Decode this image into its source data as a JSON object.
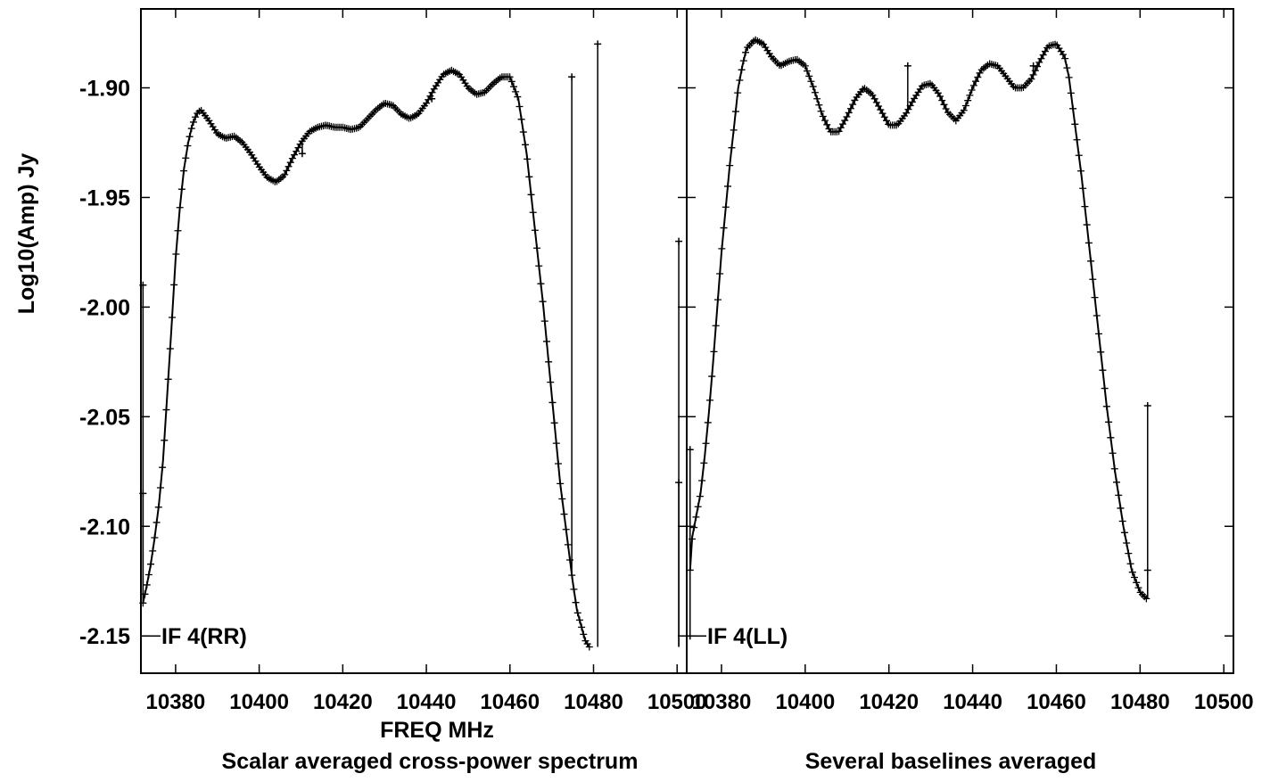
{
  "chart_data": {
    "type": "scatter",
    "ylabel": "Log10(Amp) Jy",
    "xlabel": "FREQ MHz",
    "captions": [
      "Scalar averaged cross-power spectrum",
      "Several baselines averaged"
    ],
    "y_ticks": [
      "-1.90",
      "-1.95",
      "-2.00",
      "-2.05",
      "-2.10",
      "-2.15"
    ],
    "x_ticks": [
      "10380",
      "10400",
      "10420",
      "10440",
      "10460",
      "10480",
      "10500"
    ],
    "colors": {
      "data": "#000000",
      "axes": "#000000",
      "background": "#ffffff"
    },
    "marker": "plus",
    "connected": true,
    "panels": [
      {
        "label": "IF 4(RR)",
        "xlim": [
          10371.7,
          10502.3
        ],
        "ylim": [
          -2.167,
          -1.864
        ],
        "curve": [
          [
            10372.2,
            -2.135
          ],
          [
            10373,
            -2.128
          ],
          [
            10374,
            -2.118
          ],
          [
            10375,
            -2.105
          ],
          [
            10376,
            -2.09
          ],
          [
            10377,
            -2.07
          ],
          [
            10378,
            -2.04
          ],
          [
            10379,
            -2.01
          ],
          [
            10380,
            -1.978
          ],
          [
            10381,
            -1.955
          ],
          [
            10382,
            -1.937
          ],
          [
            10383,
            -1.925
          ],
          [
            10384,
            -1.917
          ],
          [
            10385,
            -1.912
          ],
          [
            10386,
            -1.91
          ],
          [
            10388,
            -1.915
          ],
          [
            10390,
            -1.921
          ],
          [
            10392,
            -1.923
          ],
          [
            10394,
            -1.922
          ],
          [
            10396,
            -1.925
          ],
          [
            10398,
            -1.93
          ],
          [
            10400,
            -1.936
          ],
          [
            10402,
            -1.941
          ],
          [
            10404,
            -1.943
          ],
          [
            10406,
            -1.94
          ],
          [
            10408,
            -1.932
          ],
          [
            10410,
            -1.925
          ],
          [
            10412,
            -1.92
          ],
          [
            10414,
            -1.918
          ],
          [
            10416,
            -1.917
          ],
          [
            10418,
            -1.918
          ],
          [
            10420,
            -1.918
          ],
          [
            10422,
            -1.919
          ],
          [
            10424,
            -1.918
          ],
          [
            10426,
            -1.914
          ],
          [
            10428,
            -1.91
          ],
          [
            10430,
            -1.907
          ],
          [
            10432,
            -1.908
          ],
          [
            10434,
            -1.912
          ],
          [
            10436,
            -1.914
          ],
          [
            10438,
            -1.912
          ],
          [
            10440,
            -1.907
          ],
          [
            10442,
            -1.9
          ],
          [
            10444,
            -1.894
          ],
          [
            10446,
            -1.892
          ],
          [
            10448,
            -1.894
          ],
          [
            10450,
            -1.9
          ],
          [
            10452,
            -1.903
          ],
          [
            10454,
            -1.902
          ],
          [
            10456,
            -1.898
          ],
          [
            10458,
            -1.895
          ],
          [
            10460,
            -1.895
          ],
          [
            10462,
            -1.905
          ],
          [
            10464,
            -1.93
          ],
          [
            10466,
            -1.965
          ],
          [
            10468,
            -2.0
          ],
          [
            10470,
            -2.04
          ],
          [
            10472,
            -2.08
          ],
          [
            10474,
            -2.11
          ],
          [
            10475,
            -2.125
          ],
          [
            10476,
            -2.138
          ],
          [
            10477,
            -2.145
          ],
          [
            10478,
            -2.152
          ],
          [
            10479,
            -2.155
          ]
        ],
        "spikes": [
          [
            10372.2,
            -1.99
          ],
          [
            10372.2,
            -2.085
          ],
          [
            10410.3,
            -1.93
          ],
          [
            10441.3,
            -1.905
          ],
          [
            10474.8,
            -1.895
          ],
          [
            10481,
            -1.88
          ],
          [
            10500.4,
            -1.97
          ],
          [
            10500.4,
            -2.08
          ]
        ]
      },
      {
        "label": "IF 4(LL)",
        "xlim": [
          10371.7,
          10502.3
        ],
        "ylim": [
          -2.167,
          -1.864
        ],
        "curve": [
          [
            10372.5,
            -2.12
          ],
          [
            10373,
            -2.105
          ],
          [
            10374,
            -2.095
          ],
          [
            10375,
            -2.085
          ],
          [
            10376,
            -2.068
          ],
          [
            10377,
            -2.048
          ],
          [
            10378,
            -2.025
          ],
          [
            10379,
            -2.0
          ],
          [
            10380,
            -1.975
          ],
          [
            10381,
            -1.955
          ],
          [
            10382,
            -1.935
          ],
          [
            10383,
            -1.918
          ],
          [
            10384,
            -1.9
          ],
          [
            10385,
            -1.89
          ],
          [
            10386,
            -1.882
          ],
          [
            10388,
            -1.878
          ],
          [
            10390,
            -1.88
          ],
          [
            10392,
            -1.886
          ],
          [
            10394,
            -1.89
          ],
          [
            10396,
            -1.888
          ],
          [
            10398,
            -1.887
          ],
          [
            10400,
            -1.89
          ],
          [
            10402,
            -1.9
          ],
          [
            10404,
            -1.912
          ],
          [
            10406,
            -1.92
          ],
          [
            10408,
            -1.92
          ],
          [
            10410,
            -1.913
          ],
          [
            10412,
            -1.905
          ],
          [
            10414,
            -1.9
          ],
          [
            10416,
            -1.903
          ],
          [
            10418,
            -1.91
          ],
          [
            10420,
            -1.917
          ],
          [
            10422,
            -1.917
          ],
          [
            10424,
            -1.912
          ],
          [
            10426,
            -1.905
          ],
          [
            10428,
            -1.899
          ],
          [
            10430,
            -1.898
          ],
          [
            10432,
            -1.903
          ],
          [
            10434,
            -1.911
          ],
          [
            10436,
            -1.915
          ],
          [
            10438,
            -1.91
          ],
          [
            10440,
            -1.9
          ],
          [
            10442,
            -1.892
          ],
          [
            10444,
            -1.889
          ],
          [
            10446,
            -1.89
          ],
          [
            10448,
            -1.895
          ],
          [
            10450,
            -1.9
          ],
          [
            10452,
            -1.9
          ],
          [
            10454,
            -1.896
          ],
          [
            10456,
            -1.888
          ],
          [
            10458,
            -1.881
          ],
          [
            10460,
            -1.88
          ],
          [
            10462,
            -1.886
          ],
          [
            10463,
            -1.895
          ],
          [
            10464,
            -1.91
          ],
          [
            10466,
            -1.94
          ],
          [
            10468,
            -1.975
          ],
          [
            10470,
            -2.01
          ],
          [
            10472,
            -2.045
          ],
          [
            10474,
            -2.075
          ],
          [
            10476,
            -2.1
          ],
          [
            10478,
            -2.12
          ],
          [
            10480,
            -2.13
          ],
          [
            10481.5,
            -2.133
          ]
        ],
        "spikes": [
          [
            10372.5,
            -2.065
          ],
          [
            10372.5,
            -2.15
          ],
          [
            10424.5,
            -1.89
          ],
          [
            10454.5,
            -1.89
          ],
          [
            10481.8,
            -2.045
          ],
          [
            10481.8,
            -2.12
          ]
        ]
      }
    ]
  }
}
